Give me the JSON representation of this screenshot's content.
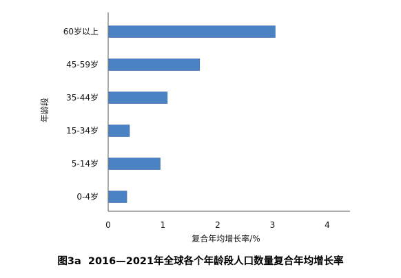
{
  "caption": "图3a  2016—2021年全球各个年龄段人口数量复合年均增长率",
  "chart_data": {
    "type": "bar",
    "orientation": "horizontal",
    "categories": [
      "60岁以上",
      "45-59岁",
      "35-44岁",
      "15-34岁",
      "5-14岁",
      "0-4岁"
    ],
    "values": [
      3.05,
      1.67,
      1.08,
      0.39,
      0.95,
      0.34
    ],
    "xlabel": "复合年均增长率/%",
    "ylabel": "年龄段",
    "xlim": [
      0,
      4
    ],
    "xticks": [
      "0",
      "1",
      "2",
      "3",
      "4"
    ],
    "grid": false,
    "legend": "none",
    "colors": {
      "bar": "#4a82c4",
      "bar_stroke": "#3a6fae",
      "axis": "#555555",
      "text": "#111111"
    }
  }
}
